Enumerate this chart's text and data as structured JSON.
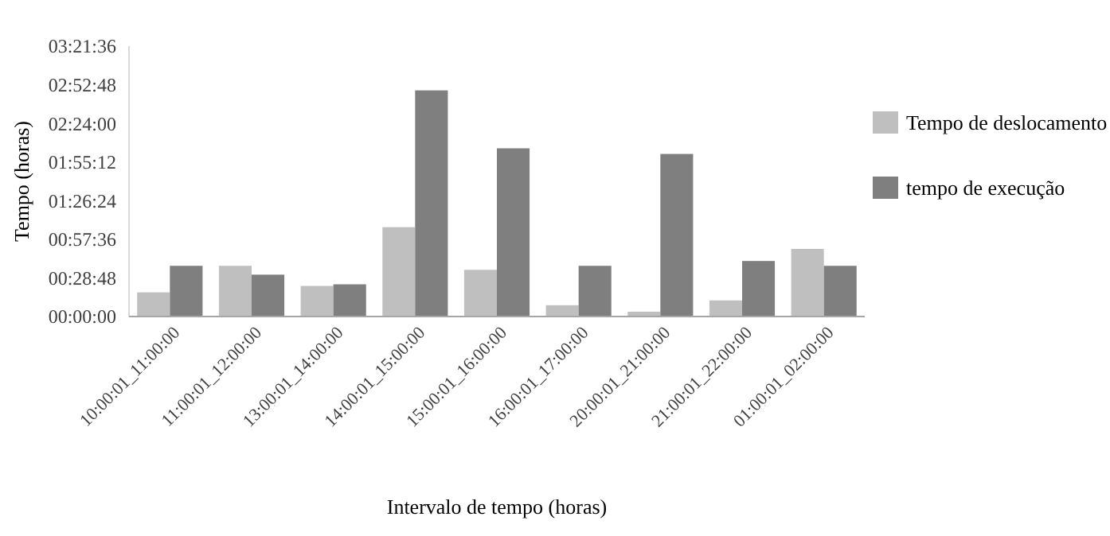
{
  "chart_data": {
    "type": "bar",
    "xlabel": "Intervalo de tempo (horas)",
    "ylabel": "Tempo (horas)",
    "categories": [
      "10:00:01_11:00:00",
      "11:00:01_12:00:00",
      "13:00:01_14:00:00",
      "14:00:01_15:00:00",
      "15:00:01_16:00:00",
      "16:00:01_17:00:00",
      "20:00:01_21:00:00",
      "21:00:01_22:00:00",
      "01:00:01_02:00:00"
    ],
    "series": [
      {
        "name": "Tempo de deslocamento",
        "color": "#bfbfbf",
        "values": [
          0.3,
          0.63,
          0.38,
          1.11,
          0.58,
          0.14,
          0.06,
          0.2,
          0.84
        ]
      },
      {
        "name": "tempo de execução",
        "color": "#7f7f7f",
        "values": [
          0.63,
          0.52,
          0.4,
          2.81,
          2.09,
          0.63,
          2.02,
          0.69,
          0.63
        ]
      }
    ],
    "ylim": [
      0,
      3.36
    ],
    "yticks": [
      {
        "value": 0,
        "label": "00:00:00"
      },
      {
        "value": 0.48,
        "label": "00:28:48"
      },
      {
        "value": 0.96,
        "label": "00:57:36"
      },
      {
        "value": 1.44,
        "label": "01:26:24"
      },
      {
        "value": 1.92,
        "label": "01:55:12"
      },
      {
        "value": 2.4,
        "label": "02:24:00"
      },
      {
        "value": 2.88,
        "label": "02:52:48"
      },
      {
        "value": 3.36,
        "label": "03:21:36"
      }
    ],
    "grid": false,
    "legend": "right"
  }
}
